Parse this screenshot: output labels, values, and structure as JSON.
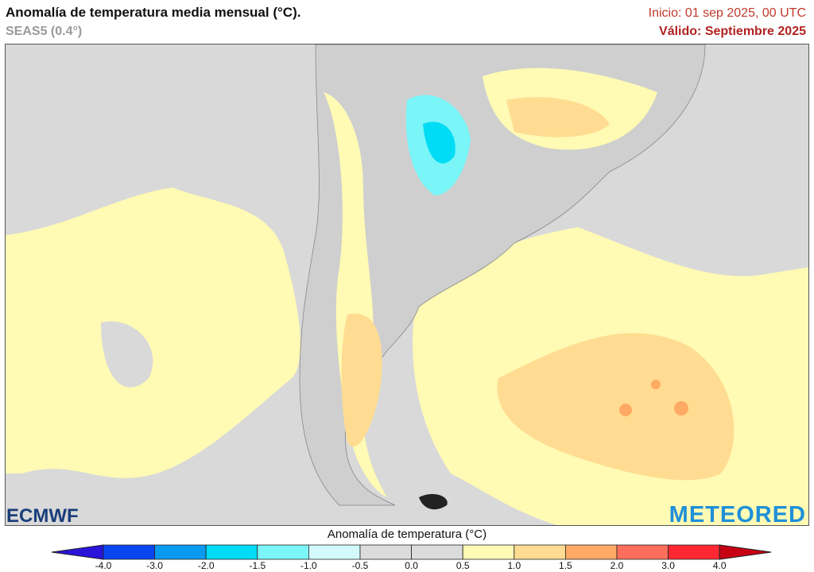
{
  "header": {
    "title": "Anomalía de temperatura media mensual (°C).",
    "model": "SEAS5 (0.4°)",
    "init": "Inicio: 01 sep 2025, 00 UTC",
    "valid": "Válido: Septiembre 2025"
  },
  "logos": {
    "left": "ECMWF",
    "right": "METEORED"
  },
  "colorbar": {
    "title": "Anomalía de temperatura (°C)",
    "ticks": [
      "-4.0",
      "-3.0",
      "-2.0",
      "-1.5",
      "-1.0",
      "-0.5",
      "0.0",
      "0.5",
      "1.0",
      "1.5",
      "2.0",
      "3.0",
      "4.0"
    ],
    "colors": [
      "#2a14d8",
      "#0a46f0",
      "#0a9af0",
      "#00dcf5",
      "#7af5f8",
      "#d2fafa",
      "#dcdcdc",
      "#dcdcdc",
      "#fffab4",
      "#ffdc91",
      "#ffaa64",
      "#ff6e5a",
      "#ff2832",
      "#c80014"
    ]
  },
  "map": {
    "land_color": "#d9d9d9",
    "region": "South America (Southern Cone)"
  }
}
